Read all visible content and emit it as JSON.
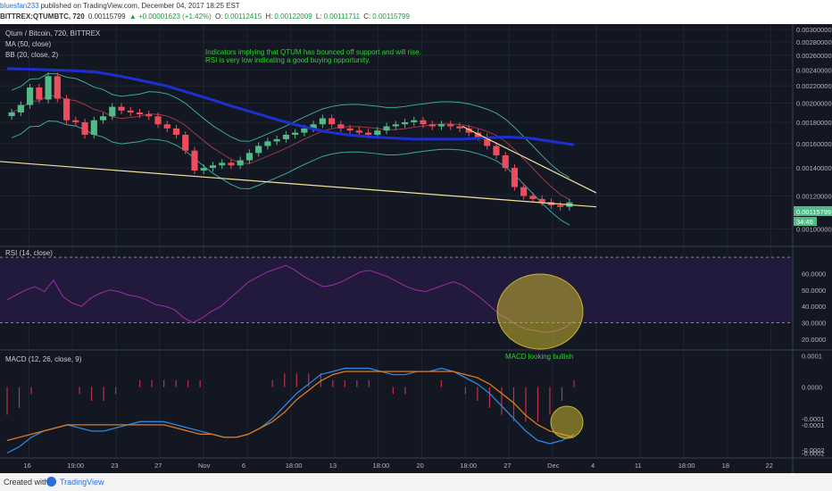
{
  "header": {
    "user": "bluesfan233",
    "published": "published on TradingView.com, December 04, 2017 18:25 EST",
    "symbol": "BITTREX:QTUMBTC, 720",
    "price": "0.00115799",
    "change": "▲ +0.00001623 (+1.42%)",
    "o_label": "O:",
    "o_value": "0.00112415",
    "h_label": "H:",
    "h_value": "0.00122009",
    "l_label": "L:",
    "l_value": "0.00111711",
    "c_label": "C:",
    "c_value": "0.00115799"
  },
  "main_pane": {
    "title": "Qtum / Bitcoin, 720, BITTREX",
    "ma_label": "MA (50, close)",
    "bb_label": "BB (20, close, 2)",
    "annotation_line1": "Indicators implying that QTUM has bounced off support and will rise.",
    "annotation_line2": "RSI is very low indicating a good buying opportunity.",
    "price_ticks": [
      "0.00300000",
      "0.00280000",
      "0.00260000",
      "0.00240000",
      "0.00220000",
      "0.00200000",
      "0.00180000",
      "0.00160000",
      "0.00140000",
      "0.00120000",
      "0.00100000"
    ],
    "last_price_tag": "0.00115799",
    "countdown_tag": "34:46"
  },
  "rsi_pane": {
    "label": "RSI (14, close)",
    "ticks": [
      "60.0000",
      "50.0000",
      "40.0000",
      "30.0000",
      "20.0000"
    ]
  },
  "macd_pane": {
    "label": "MACD (12, 26, close, 9)",
    "note": "MACD looking bullish",
    "ticks": [
      "0.0001",
      "0.0000",
      "-0.0001",
      "-0.0001",
      "-0.0002",
      "-0.0002"
    ]
  },
  "x_axis": {
    "ticks": [
      "16",
      "19:00",
      "23",
      "27",
      "Nov",
      "6",
      "18:00",
      "13",
      "18:00",
      "20",
      "18:00",
      "27",
      "Dec",
      "4",
      "11",
      "18:00",
      "18",
      "22"
    ]
  },
  "footer": {
    "created_with": "Created with",
    "brand": "TradingView"
  },
  "colors": {
    "background": "#131722",
    "up_candle": "#53b987",
    "down_candle": "#eb4d5c",
    "ma": "#1e2fd1",
    "bb_band": "#3aa8a0",
    "bb_mid": "#9c3a4a",
    "trendline": "#f4e19c",
    "annotation": "#2bd62b",
    "rsi_line": "#a02ea4",
    "rsi_band": "#2a1f4a",
    "macd_line": "#2e86de",
    "signal_line": "#e0791e",
    "histogram": "#c0304a",
    "highlight_ellipse": "#c8b42e"
  },
  "chart_data": [
    {
      "type": "candlestick",
      "title": "Qtum / Bitcoin, 720, BITTREX",
      "yscale": "log",
      "ylim": [
        0.00095,
        0.003
      ],
      "series": [
        {
          "name": "MA (50, close)",
          "values": [
            0.00242,
            0.00241,
            0.0024,
            0.00239,
            0.00237,
            0.00232,
            0.00226,
            0.0022,
            0.00212,
            0.00204,
            0.00196,
            0.00189,
            0.00182,
            0.00176,
            0.00171,
            0.00168,
            0.00166,
            0.00165,
            0.00164,
            0.00164,
            0.00164,
            0.00165,
            0.00166,
            0.00165,
            0.00162,
            0.00159
          ]
        },
        {
          "name": "BB (20, close, 2)"
        }
      ],
      "candles_close": [
        0.0019,
        0.00198,
        0.00218,
        0.00204,
        0.00232,
        0.00205,
        0.00182,
        0.0018,
        0.00168,
        0.00182,
        0.00186,
        0.00196,
        0.00192,
        0.0019,
        0.00188,
        0.00186,
        0.00178,
        0.00174,
        0.00168,
        0.00154,
        0.00138,
        0.0014,
        0.00142,
        0.00144,
        0.00142,
        0.00146,
        0.00152,
        0.00158,
        0.00162,
        0.00164,
        0.00168,
        0.0017,
        0.00174,
        0.00178,
        0.00184,
        0.00178,
        0.00174,
        0.00172,
        0.0017,
        0.00168,
        0.00172,
        0.00176,
        0.00178,
        0.0018,
        0.00182,
        0.00178,
        0.00176,
        0.00178,
        0.00176,
        0.00174,
        0.0017,
        0.00166,
        0.00158,
        0.0015,
        0.0014,
        0.00126,
        0.0012,
        0.00118,
        0.00116,
        0.00114,
        0.00113,
        0.00115799
      ],
      "trendlines": [
        {
          "from_date": "16",
          "from_value": 0.00145,
          "to_date": "4",
          "to_value": 0.00113
        },
        {
          "from_date": "22",
          "from_value": 0.00176,
          "to_date": "4",
          "to_value": 0.00122
        }
      ]
    },
    {
      "type": "line",
      "title": "RSI (14, close)",
      "ylim": [
        15,
        75
      ],
      "series": [
        {
          "name": "RSI (14, close)",
          "values": [
            44,
            47,
            50,
            52,
            49,
            56,
            46,
            42,
            40,
            45,
            48,
            50,
            49,
            47,
            46,
            44,
            41,
            40,
            38,
            33,
            30,
            33,
            37,
            40,
            45,
            50,
            55,
            58,
            61,
            63,
            65,
            62,
            58,
            55,
            52,
            53,
            55,
            58,
            61,
            62,
            60,
            58,
            55,
            52,
            50,
            49,
            51,
            53,
            55,
            53,
            49,
            45,
            40,
            35,
            32,
            28,
            26,
            25,
            24,
            25,
            27,
            31
          ]
        }
      ]
    },
    {
      "type": "line",
      "title": "MACD (12, 26, close, 9)",
      "ylim": [
        -0.00022,
        0.00011
      ],
      "series": [
        {
          "name": "MACD",
          "values": [
            -0.00021,
            -0.00019,
            -0.00016,
            -0.00014,
            -0.00013,
            -0.00012,
            -0.00013,
            -0.00014,
            -0.00014,
            -0.00013,
            -0.00012,
            -0.00011,
            -0.00011,
            -0.00011,
            -0.00012,
            -0.00013,
            -0.00014,
            -0.00015,
            -0.00016,
            -0.00016,
            -0.00015,
            -0.00013,
            -0.0001,
            -6e-05,
            -2e-05,
            1e-05,
            4e-05,
            5e-05,
            6e-05,
            6e-05,
            6e-05,
            5e-05,
            4e-05,
            4e-05,
            5e-05,
            5e-05,
            6e-05,
            5e-05,
            3e-05,
            1e-05,
            -2e-05,
            -6e-05,
            -0.0001,
            -0.00014,
            -0.00017,
            -0.00018,
            -0.00017,
            -0.00015
          ]
        },
        {
          "name": "Signal",
          "values": [
            -0.00017,
            -0.00016,
            -0.00015,
            -0.00014,
            -0.00013,
            -0.00012,
            -0.00012,
            -0.00012,
            -0.00012,
            -0.00012,
            -0.00012,
            -0.00012,
            -0.00012,
            -0.00012,
            -0.00013,
            -0.00014,
            -0.00015,
            -0.00015,
            -0.00016,
            -0.00016,
            -0.00015,
            -0.00013,
            -0.00011,
            -8e-05,
            -4e-05,
            -1e-05,
            2e-05,
            4e-05,
            5e-05,
            5e-05,
            5e-05,
            5e-05,
            5e-05,
            5e-05,
            5e-05,
            5e-05,
            5e-05,
            5e-05,
            4e-05,
            3e-05,
            1e-05,
            -2e-05,
            -5e-05,
            -9e-05,
            -0.00012,
            -0.00014,
            -0.00015,
            -0.00016
          ]
        }
      ]
    }
  ]
}
